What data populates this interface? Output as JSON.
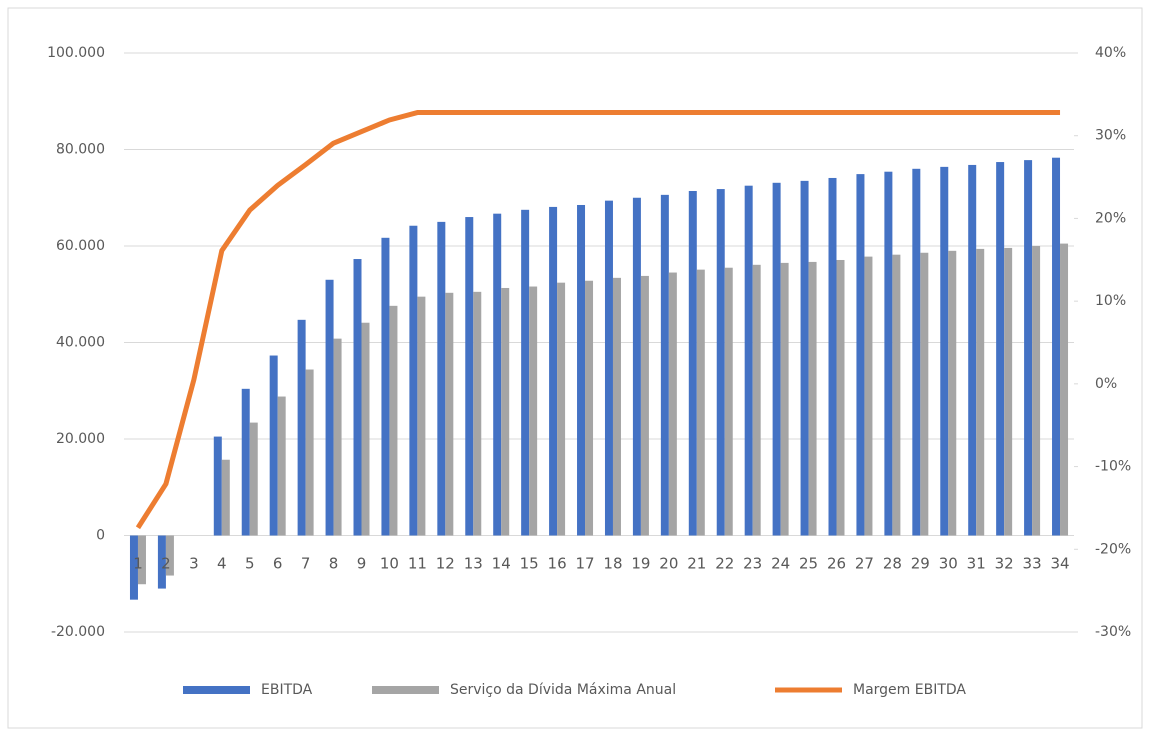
{
  "chart_data": {
    "type": "bar-line",
    "categories": [
      "1",
      "2",
      "3",
      "4",
      "5",
      "6",
      "7",
      "8",
      "9",
      "10",
      "11",
      "12",
      "13",
      "14",
      "15",
      "16",
      "17",
      "18",
      "19",
      "20",
      "21",
      "22",
      "23",
      "24",
      "25",
      "26",
      "27",
      "28",
      "29",
      "30",
      "31",
      "32",
      "33",
      "34"
    ],
    "series": [
      {
        "name": "EBITDA",
        "color": "#4472c4",
        "type": "bar",
        "values": [
          -13300,
          -11000,
          0,
          20500,
          30400,
          37300,
          44700,
          53000,
          57300,
          61700,
          64200,
          65000,
          66000,
          66700,
          67500,
          68100,
          68500,
          69400,
          70000,
          70600,
          71400,
          71800,
          72500,
          73100,
          73500,
          74100,
          74900,
          75400,
          76000,
          76400,
          76800,
          77400,
          77800,
          78300
        ]
      },
      {
        "name": "Serviço da Dívida Máxima Anual",
        "color": "#a5a5a5",
        "type": "bar",
        "values": [
          -10100,
          -8300,
          0,
          15700,
          23400,
          28800,
          34400,
          40800,
          44100,
          47600,
          49500,
          50300,
          50500,
          51300,
          51600,
          52400,
          52800,
          53400,
          53800,
          54500,
          55100,
          55500,
          56100,
          56500,
          56700,
          57100,
          57800,
          58200,
          58600,
          59000,
          59400,
          59600,
          60000,
          60500
        ]
      },
      {
        "name": "Margem EBITDA",
        "color": "#ed7d31",
        "type": "line",
        "axis": "y2",
        "values": [
          -17.4,
          -12.1,
          0.5,
          16.1,
          21,
          24,
          26.5,
          29.1,
          30.5,
          31.9,
          32.8,
          32.8,
          32.8,
          32.8,
          32.8,
          32.8,
          32.8,
          32.8,
          32.8,
          32.8,
          32.8,
          32.8,
          32.8,
          32.8,
          32.8,
          32.8,
          32.8,
          32.8,
          32.8,
          32.8,
          32.8,
          32.8,
          32.8,
          32.8
        ]
      }
    ],
    "ylim": [
      -20000,
      100000
    ],
    "yticks": [
      {
        "value": -20000,
        "label": "-20.000"
      },
      0,
      {
        "value": 20000,
        "label": "20.000"
      },
      {
        "value": 40000,
        "label": "40.000"
      },
      {
        "value": 60000,
        "label": "60.000"
      },
      {
        "value": 80000,
        "label": "80.000"
      },
      {
        "value": 100000,
        "label": "100.000"
      }
    ],
    "y2lim": [
      -30,
      40
    ],
    "y2ticks": [
      {
        "value": -30,
        "label": "-30%"
      },
      {
        "value": -20,
        "label": "-20%"
      },
      {
        "value": -10,
        "label": "-10%"
      },
      {
        "value": 0,
        "label": "0%"
      },
      {
        "value": 10,
        "label": "10%"
      },
      {
        "value": 20,
        "label": "20%"
      },
      {
        "value": 30,
        "label": "30%"
      },
      {
        "value": 40,
        "label": "40%"
      }
    ],
    "grid": true,
    "legend": "bottom"
  }
}
